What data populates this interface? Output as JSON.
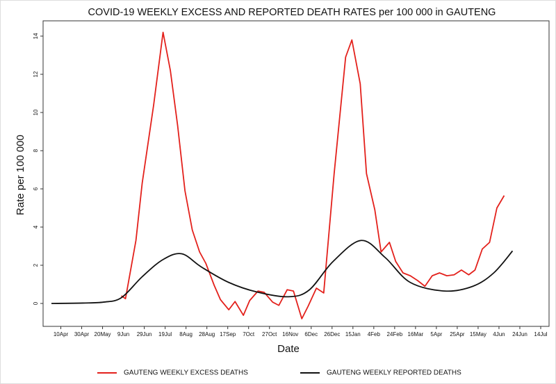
{
  "chart_data": {
    "type": "line",
    "title": "COVID-19 WEEKLY EXCESS AND REPORTED DEATH RATES per 100 000 in GAUTENG",
    "x_label": "Date",
    "y_label": "Rate per 100 000",
    "xlim": [
      -17,
      468
    ],
    "xticks": [
      {
        "value": 0,
        "label": "10Apr"
      },
      {
        "value": 20,
        "label": "30Apr"
      },
      {
        "value": 40,
        "label": "20May"
      },
      {
        "value": 60,
        "label": "9Jun"
      },
      {
        "value": 80,
        "label": "29Jun"
      },
      {
        "value": 100,
        "label": "19Jul"
      },
      {
        "value": 120,
        "label": "8Aug"
      },
      {
        "value": 140,
        "label": "28Aug"
      },
      {
        "value": 160,
        "label": "17Sep"
      },
      {
        "value": 180,
        "label": "7Oct"
      },
      {
        "value": 200,
        "label": "27Oct"
      },
      {
        "value": 220,
        "label": "16Nov"
      },
      {
        "value": 240,
        "label": "6Dec"
      },
      {
        "value": 260,
        "label": "26Dec"
      },
      {
        "value": 280,
        "label": "15Jan"
      },
      {
        "value": 300,
        "label": "4Feb"
      },
      {
        "value": 320,
        "label": "24Feb"
      },
      {
        "value": 340,
        "label": "16Mar"
      },
      {
        "value": 360,
        "label": "5Apr"
      },
      {
        "value": 380,
        "label": "25Apr"
      },
      {
        "value": 400,
        "label": "15May"
      },
      {
        "value": 420,
        "label": "4Jun"
      },
      {
        "value": 440,
        "label": "24Jun"
      },
      {
        "value": 460,
        "label": "14Jul"
      }
    ],
    "ylim": [
      -1.2,
      14.8
    ],
    "yticks": [
      0,
      2,
      4,
      6,
      8,
      10,
      12,
      14
    ],
    "legend": "bottom",
    "series": [
      {
        "name": "GAUTENG WEEKLY EXCESS DEATHS",
        "color": "#e3201b",
        "smooth": false,
        "x": [
          58,
          62,
          72,
          78,
          89,
          98,
          105,
          112,
          119,
          126,
          133,
          139,
          147,
          153,
          161,
          167,
          175,
          181,
          189,
          195,
          203,
          209,
          217,
          223,
          231,
          237,
          245,
          252,
          262,
          273,
          279,
          287,
          293,
          301,
          307,
          315,
          321,
          328,
          335,
          342,
          349,
          356,
          363,
          370,
          377,
          384,
          391,
          397,
          404,
          411,
          418,
          425
        ],
        "values": [
          0.4,
          0.25,
          3.3,
          6.3,
          10.4,
          14.2,
          12.2,
          9.3,
          5.9,
          3.85,
          2.7,
          2.1,
          0.95,
          0.2,
          -0.33,
          0.1,
          -0.62,
          0.15,
          0.65,
          0.58,
          0.07,
          -0.1,
          0.72,
          0.65,
          -0.8,
          -0.15,
          0.8,
          0.55,
          6.8,
          12.9,
          13.8,
          11.5,
          6.8,
          4.9,
          2.7,
          3.2,
          2.2,
          1.6,
          1.45,
          1.2,
          0.9,
          1.45,
          1.6,
          1.45,
          1.5,
          1.75,
          1.5,
          1.75,
          2.85,
          3.2,
          5.0,
          5.65
        ]
      },
      {
        "name": "GAUTENG WEEKLY REPORTED DEATHS",
        "color": "#111111",
        "smooth": true,
        "x": [
          -9,
          21,
          41,
          58,
          78,
          98,
          116,
          135,
          161,
          188,
          218,
          238,
          261,
          288,
          311,
          335,
          368,
          395,
          415,
          433
        ],
        "values": [
          0,
          0.02,
          0.07,
          0.3,
          1.4,
          2.3,
          2.6,
          1.9,
          1.1,
          0.6,
          0.35,
          0.7,
          2.2,
          3.3,
          2.4,
          1.1,
          0.65,
          0.9,
          1.6,
          2.75
        ]
      }
    ]
  }
}
